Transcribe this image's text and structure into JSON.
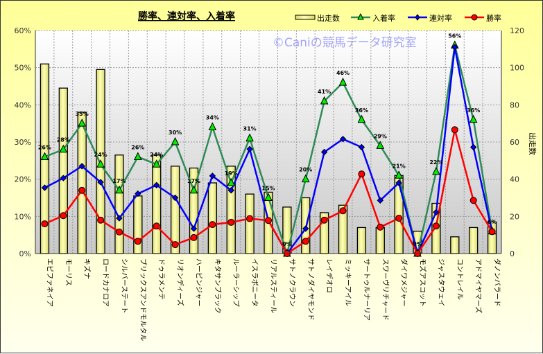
{
  "chart_data": {
    "type": "bar+line",
    "title": "勝率、連対率、入着率",
    "watermark": "©Caniの競馬データ研究室",
    "ylabel_left": "",
    "ylabel_right": "出走数",
    "ylim_left": [
      0,
      60
    ],
    "yticks_left": [
      "0%",
      "10%",
      "20%",
      "30%",
      "40%",
      "50%",
      "60%"
    ],
    "ylim_right": [
      0,
      120
    ],
    "yticks_right": [
      "0",
      "20",
      "40",
      "60",
      "80",
      "100",
      "120"
    ],
    "grid": true,
    "legend_position": "top-right",
    "categories": [
      "エピファネイア",
      "モーリス",
      "キズナ",
      "ロードカナロア",
      "シルバーステート",
      "ブリックスアンドモルタル",
      "ドゥラメンテ",
      "リオンディーズ",
      "ハービンジャー",
      "キタサンブラック",
      "ルーラーシップ",
      "イスラボニータ",
      "リアルスティール",
      "サトノクラウン",
      "サトノダイヤモンド",
      "レイデオロ",
      "ミッキーアイル",
      "サートゥルナーリア",
      "スワーヴリチャード",
      "ダイワメジャー",
      "モズアスコット",
      "ジャスタウェイ",
      "コントレイル",
      "アドマイヤマーズ",
      "ダノンバラード"
    ],
    "series": [
      {
        "name": "出走数",
        "type": "bar",
        "axis": "right",
        "color": "#f0f090",
        "values": [
          102,
          89,
          76,
          99,
          53,
          31,
          53,
          47,
          46,
          38,
          47,
          32,
          33,
          25,
          30,
          22,
          26,
          14,
          14,
          42,
          12,
          27,
          9,
          14,
          17
        ]
      },
      {
        "name": "入着率",
        "type": "line",
        "axis": "left",
        "color": "#2e8b57",
        "marker": "triangle",
        "marker_color": "#00ee00",
        "values": [
          26,
          28,
          35,
          24,
          17,
          26,
          24,
          30,
          17,
          34,
          19,
          31,
          15,
          0,
          20,
          41,
          46,
          36,
          29,
          21,
          0,
          22,
          56,
          36,
          6
        ],
        "data_labels": [
          "26%",
          "28%",
          "35%",
          "24%",
          "17%",
          "26%",
          "24%",
          "30%",
          "17%",
          "34%",
          "19%",
          "31%",
          "15%",
          "0%",
          "20%",
          "41%",
          "46%",
          "36%",
          "29%",
          "21%",
          "0%",
          "22%",
          "56%",
          "36%",
          "6%"
        ]
      },
      {
        "name": "連対率",
        "type": "line",
        "axis": "left",
        "color": "#0000ff",
        "marker": "diamond",
        "values": [
          17.7,
          20.3,
          23.5,
          19.2,
          9.5,
          16.1,
          18.4,
          15,
          6.7,
          20.9,
          17,
          28.1,
          8.9,
          0,
          6.7,
          27.3,
          30.8,
          28.6,
          14.3,
          19,
          0,
          11.1,
          55.5,
          28.6,
          5.9
        ]
      },
      {
        "name": "勝率",
        "type": "line",
        "axis": "left",
        "color": "#ff0000",
        "marker": "circle",
        "values": [
          8,
          10.2,
          17,
          9,
          5.8,
          3.3,
          7.4,
          2.4,
          4.3,
          7.8,
          8.4,
          9.4,
          8.9,
          0,
          3.3,
          9,
          11.5,
          21.4,
          7.1,
          9.5,
          0,
          7.4,
          33.3,
          14.3,
          5.9
        ]
      }
    ]
  }
}
